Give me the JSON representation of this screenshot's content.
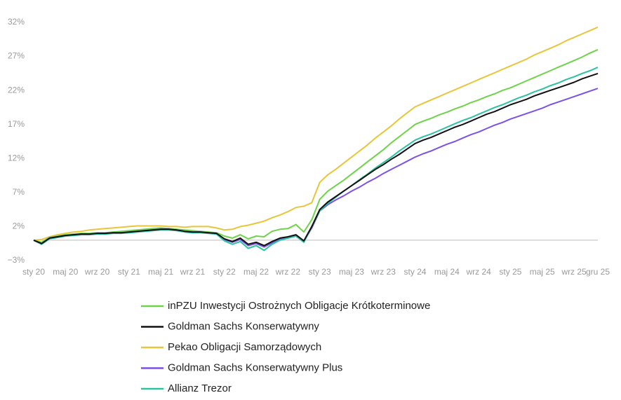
{
  "chart_data": {
    "type": "line",
    "categories": [
      "sty 20",
      null,
      null,
      null,
      "maj 20",
      null,
      null,
      null,
      "wrz 20",
      null,
      null,
      null,
      "sty 21",
      null,
      null,
      null,
      "maj 21",
      null,
      null,
      null,
      "wrz 21",
      null,
      null,
      null,
      "sty 22",
      null,
      null,
      null,
      "maj 22",
      null,
      null,
      null,
      "wrz 22",
      null,
      null,
      null,
      "sty 23",
      null,
      null,
      null,
      "maj 23",
      null,
      null,
      null,
      "wrz 23",
      null,
      null,
      null,
      "sty 24",
      null,
      null,
      null,
      "maj 24",
      null,
      null,
      null,
      "wrz 24",
      null,
      null,
      null,
      "sty 25",
      null,
      null,
      null,
      "maj 25",
      null,
      null,
      null,
      "wrz 25",
      null,
      null,
      "gru 25"
    ],
    "ylim": [
      -3,
      32
    ],
    "yticks": [
      {
        "value": -3,
        "label": "−3%"
      },
      {
        "value": 2,
        "label": "2%"
      },
      {
        "value": 7,
        "label": "7%"
      },
      {
        "value": 12,
        "label": "12%"
      },
      {
        "value": 17,
        "label": "17%"
      },
      {
        "value": 22,
        "label": "22%"
      },
      {
        "value": 27,
        "label": "27%"
      },
      {
        "value": 32,
        "label": "32%"
      }
    ],
    "grid": false,
    "series": [
      {
        "name": "inPZU Inwestycji Ostrożnych Obligacje Krótkoterminowe",
        "color": "#6fd34a",
        "values": [
          0,
          -0.3,
          0.4,
          0.6,
          0.8,
          0.9,
          1.0,
          1.0,
          1.1,
          1.1,
          1.2,
          1.3,
          1.4,
          1.5,
          1.6,
          1.7,
          1.8,
          1.7,
          1.6,
          1.5,
          1.4,
          1.3,
          1.2,
          1.1,
          0.6,
          0.3,
          0.8,
          0.2,
          0.6,
          0.5,
          1.3,
          1.6,
          1.7,
          2.3,
          1.2,
          3.0,
          6.0,
          7.2,
          8.0,
          8.8,
          9.7,
          10.6,
          11.5,
          12.4,
          13.3,
          14.3,
          15.2,
          16.1,
          17.0,
          17.5,
          17.9,
          18.4,
          18.8,
          19.3,
          19.7,
          20.2,
          20.6,
          21.1,
          21.5,
          22.0,
          22.4,
          22.9,
          23.4,
          23.9,
          24.4,
          24.9,
          25.4,
          25.9,
          26.4,
          26.9,
          27.5,
          28.0
        ]
      },
      {
        "name": "Goldman Sachs Konserwatywny",
        "color": "#111111",
        "values": [
          0,
          -0.5,
          0.3,
          0.5,
          0.7,
          0.8,
          0.9,
          0.9,
          1.0,
          1.0,
          1.1,
          1.1,
          1.2,
          1.3,
          1.4,
          1.5,
          1.6,
          1.6,
          1.5,
          1.3,
          1.2,
          1.2,
          1.1,
          1.0,
          0.2,
          -0.2,
          0.3,
          -0.6,
          -0.3,
          -0.8,
          -0.2,
          0.3,
          0.5,
          0.8,
          -0.1,
          2.0,
          4.5,
          5.6,
          6.4,
          7.2,
          8.0,
          8.8,
          9.6,
          10.4,
          11.1,
          11.9,
          12.6,
          13.4,
          14.2,
          14.7,
          15.1,
          15.6,
          16.1,
          16.6,
          17.0,
          17.5,
          18.0,
          18.5,
          18.9,
          19.4,
          19.9,
          20.3,
          20.7,
          21.2,
          21.6,
          22.0,
          22.4,
          22.8,
          23.2,
          23.7,
          24.1,
          24.5
        ]
      },
      {
        "name": "Pekao Obligacji Samorządowych",
        "color": "#e8c53a",
        "values": [
          0,
          0.1,
          0.5,
          0.8,
          1.0,
          1.2,
          1.3,
          1.5,
          1.6,
          1.7,
          1.8,
          1.9,
          2.0,
          2.1,
          2.1,
          2.1,
          2.1,
          2.0,
          2.0,
          1.9,
          2.0,
          2.0,
          2.0,
          1.8,
          1.5,
          1.6,
          2.0,
          2.2,
          2.5,
          2.8,
          3.3,
          3.7,
          4.2,
          4.8,
          5.0,
          5.5,
          8.5,
          9.6,
          10.4,
          11.3,
          12.2,
          13.1,
          14.0,
          15.0,
          15.9,
          16.8,
          17.8,
          18.7,
          19.6,
          20.1,
          20.6,
          21.1,
          21.6,
          22.1,
          22.6,
          23.1,
          23.6,
          24.1,
          24.6,
          25.1,
          25.6,
          26.1,
          26.6,
          27.2,
          27.7,
          28.2,
          28.7,
          29.3,
          29.8,
          30.3,
          30.8,
          31.3
        ]
      },
      {
        "name": "Goldman Sachs Konserwatywny Plus",
        "color": "#7b52e8",
        "values": [
          0,
          -0.5,
          0.3,
          0.5,
          0.7,
          0.8,
          0.9,
          0.9,
          1.0,
          1.0,
          1.1,
          1.1,
          1.2,
          1.3,
          1.4,
          1.5,
          1.6,
          1.6,
          1.5,
          1.3,
          1.2,
          1.2,
          1.1,
          1.0,
          0.1,
          -0.3,
          0.1,
          -0.8,
          -0.5,
          -1.0,
          -0.4,
          0.2,
          0.4,
          0.7,
          -0.2,
          1.8,
          4.3,
          5.2,
          5.9,
          6.5,
          7.2,
          7.8,
          8.5,
          9.1,
          9.8,
          10.4,
          11.0,
          11.6,
          12.2,
          12.7,
          13.1,
          13.6,
          14.1,
          14.5,
          15.0,
          15.5,
          15.9,
          16.4,
          16.9,
          17.3,
          17.8,
          18.2,
          18.6,
          19.0,
          19.4,
          19.9,
          20.3,
          20.7,
          21.1,
          21.5,
          21.9,
          22.3
        ]
      },
      {
        "name": "Allianz Trezor",
        "color": "#2bc3a0",
        "values": [
          0,
          -0.6,
          0.2,
          0.4,
          0.6,
          0.7,
          0.8,
          0.8,
          0.9,
          0.9,
          1.0,
          1.0,
          1.1,
          1.2,
          1.3,
          1.4,
          1.5,
          1.5,
          1.4,
          1.2,
          1.1,
          1.1,
          1.0,
          0.9,
          -0.1,
          -0.6,
          -0.2,
          -1.2,
          -0.8,
          -1.5,
          -0.6,
          0.0,
          0.3,
          0.6,
          -0.3,
          2.0,
          4.3,
          5.4,
          6.3,
          7.2,
          8.0,
          8.9,
          9.7,
          10.6,
          11.4,
          12.2,
          13.1,
          13.9,
          14.7,
          15.2,
          15.6,
          16.1,
          16.6,
          17.1,
          17.6,
          18.0,
          18.5,
          19.0,
          19.5,
          19.9,
          20.4,
          20.9,
          21.3,
          21.8,
          22.2,
          22.7,
          23.1,
          23.6,
          24.0,
          24.5,
          24.9,
          25.4
        ]
      }
    ]
  }
}
